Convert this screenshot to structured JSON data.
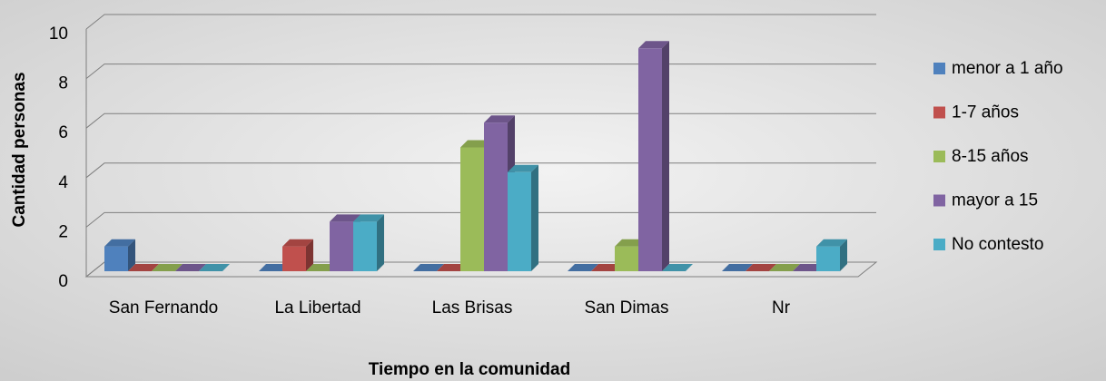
{
  "chart_data": {
    "type": "bar3d",
    "x_label": "Tiempo en la comunidad",
    "y_label": "Cantidad personas",
    "categories": [
      "San Fernando",
      "La Libertad",
      "Las Brisas",
      "San Dimas",
      "Nr"
    ],
    "series": [
      {
        "name": "menor a 1 año",
        "color": "#4f81bd",
        "values": [
          1,
          0,
          0,
          0,
          0
        ]
      },
      {
        "name": "1-7 años",
        "color": "#c0504d",
        "values": [
          0,
          1,
          0,
          0,
          0
        ]
      },
      {
        "name": "8-15 años",
        "color": "#9bbb59",
        "values": [
          0,
          0,
          5,
          1,
          0
        ]
      },
      {
        "name": "mayor a 15",
        "color": "#8064a2",
        "values": [
          0,
          2,
          6,
          9,
          0
        ]
      },
      {
        "name": "No contesto",
        "color": "#4bacc6",
        "values": [
          0,
          2,
          4,
          0,
          1
        ]
      }
    ],
    "ylim": [
      0,
      10
    ],
    "yticks": [
      0,
      2,
      4,
      6,
      8,
      10
    ],
    "grid": true,
    "legend": "right"
  }
}
